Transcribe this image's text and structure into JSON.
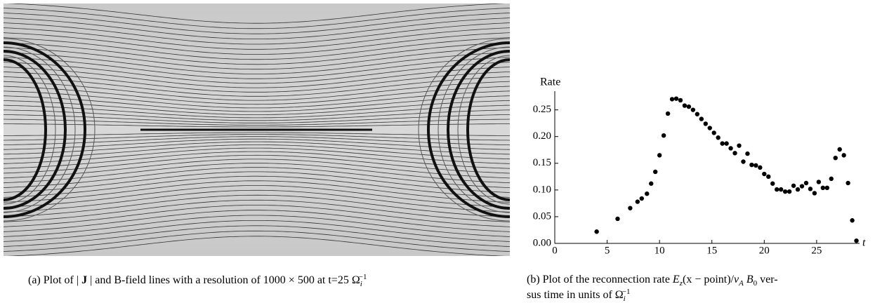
{
  "panel_a": {
    "caption": [
      "(a)  Plot of | ",
      "J",
      " | and B-field lines with a resolution of 1000 × 500 at t=25 Ω",
      "i",
      "−1"
    ]
  },
  "chart_data": {
    "type": "scatter",
    "y_label": "Rate",
    "x_label": "t",
    "color": "#000000",
    "x": [
      4,
      6,
      7.2,
      7.9,
      8.3,
      8.8,
      9.2,
      9.6,
      10,
      10.4,
      10.8,
      11.2,
      11.6,
      12,
      12.4,
      12.8,
      13.2,
      13.6,
      14,
      14.4,
      14.8,
      15.2,
      15.6,
      16,
      16.4,
      16.8,
      17.2,
      17.6,
      18,
      18.4,
      18.8,
      19.2,
      19.6,
      20,
      20.4,
      20.8,
      21.2,
      21.6,
      22,
      22.4,
      22.8,
      23.2,
      23.6,
      24,
      24.4,
      24.8,
      25.2,
      25.6,
      26,
      26.4,
      26.8,
      27.2,
      27.6,
      28,
      28.4,
      28.8
    ],
    "values": [
      0.022,
      0.046,
      0.066,
      0.078,
      0.084,
      0.093,
      0.112,
      0.134,
      0.165,
      0.202,
      0.243,
      0.27,
      0.271,
      0.268,
      0.258,
      0.256,
      0.25,
      0.242,
      0.233,
      0.224,
      0.216,
      0.207,
      0.198,
      0.187,
      0.187,
      0.178,
      0.169,
      0.183,
      0.153,
      0.168,
      0.147,
      0.146,
      0.142,
      0.13,
      0.125,
      0.112,
      0.101,
      0.101,
      0.097,
      0.097,
      0.108,
      0.101,
      0.107,
      0.113,
      0.102,
      0.094,
      0.115,
      0.104,
      0.104,
      0.121,
      0.16,
      0.176,
      0.165,
      0.113,
      0.043,
      0.005
    ],
    "xlim": [
      0,
      29.5
    ],
    "ylim": [
      0,
      0.285
    ],
    "xticks": [
      0,
      5,
      10,
      15,
      20,
      25
    ],
    "yticks": [
      {
        "value": 0,
        "label": "0.00"
      },
      {
        "value": 0.05,
        "label": "0.05"
      },
      {
        "value": 0.1,
        "label": "0.10"
      },
      {
        "value": 0.15,
        "label": "0.15"
      },
      {
        "value": 0.2,
        "label": "0.20"
      },
      {
        "value": 0.25,
        "label": "0.25"
      }
    ],
    "caption": [
      "(b)  Plot of the reconnection rate ",
      "E",
      "z",
      "(x − point)/",
      "v",
      "A",
      " B",
      "0",
      " ver-",
      "sus time in units of Ω",
      "i",
      "−1"
    ]
  }
}
